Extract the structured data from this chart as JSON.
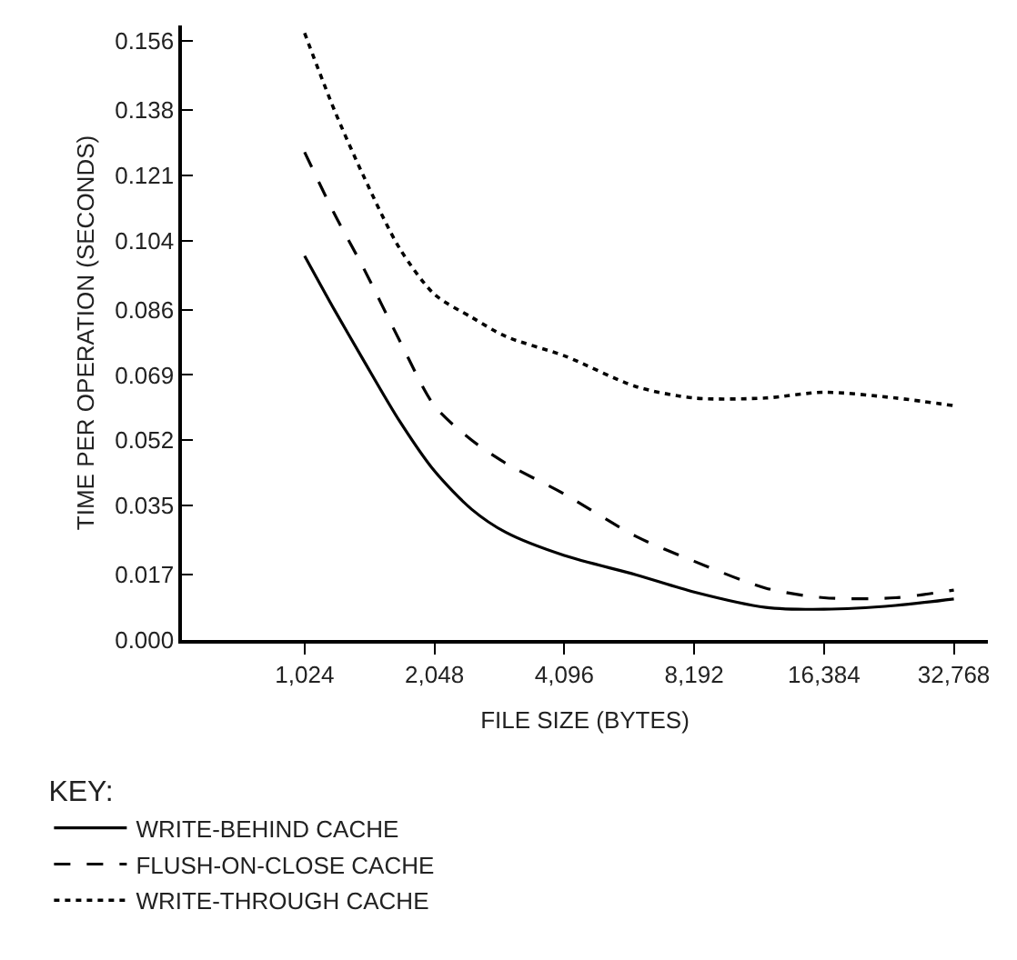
{
  "chart_data": {
    "type": "line",
    "xlabel": "FILE SIZE (BYTES)",
    "ylabel": "TIME PER OPERATION (SECONDS)",
    "legend_title": "KEY:",
    "log": "x",
    "xlim": [
      532,
      39300
    ],
    "xticks": [
      {
        "value": 1024,
        "label": "1,024"
      },
      {
        "value": 2048,
        "label": "2,048"
      },
      {
        "value": 4096,
        "label": "4,096"
      },
      {
        "value": 8192,
        "label": "8,192"
      },
      {
        "value": 16384,
        "label": "16,384"
      },
      {
        "value": 32768,
        "label": "32,768"
      }
    ],
    "ylim": [
      0,
      0.16
    ],
    "yticks": [
      {
        "value": 0,
        "label": "0.000"
      },
      0.017,
      0.035,
      0.052,
      0.069,
      0.086,
      0.104,
      0.121,
      0.138,
      0.156
    ],
    "legend": "bottom left",
    "marker": "none",
    "x": [
      1024,
      1200,
      1400,
      1700,
      2048,
      2500,
      3000,
      4096,
      6000,
      8192,
      12000,
      16384,
      24000,
      32768
    ],
    "series": [
      {
        "name": "WRITE-BEHIND CACHE",
        "color": "#000000",
        "line_style": "solid",
        "values": [
          0.1,
          0.086,
          0.073,
          0.057,
          0.044,
          0.034,
          0.028,
          0.022,
          0.017,
          0.0125,
          0.0085,
          0.008,
          0.009,
          0.0107
        ]
      },
      {
        "name": "FLUSH-ON-CLOSE CACHE",
        "color": "#000000",
        "line_style": "dashed",
        "values": [
          0.127,
          0.111,
          0.097,
          0.078,
          0.061,
          0.052,
          0.046,
          0.038,
          0.027,
          0.0205,
          0.0135,
          0.011,
          0.011,
          0.013
        ]
      },
      {
        "name": "WRITE-THROUGH CACHE",
        "color": "#000000",
        "line_style": "dotted",
        "values": [
          0.158,
          0.138,
          0.121,
          0.102,
          0.09,
          0.084,
          0.079,
          0.074,
          0.066,
          0.063,
          0.063,
          0.0645,
          0.063,
          0.061
        ]
      }
    ]
  }
}
